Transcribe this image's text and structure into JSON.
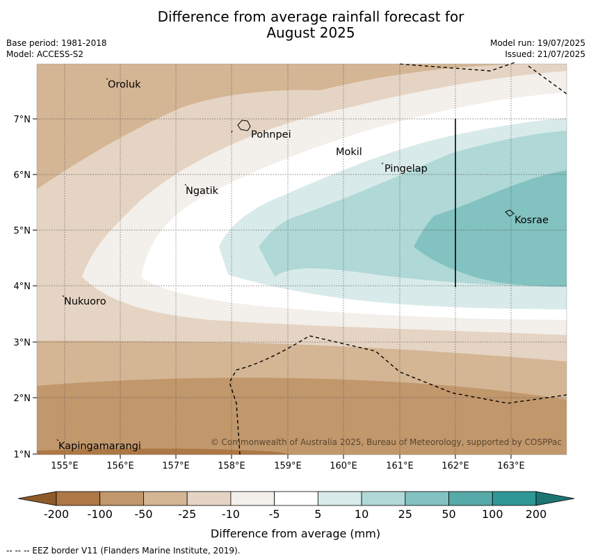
{
  "title": {
    "line1": "Difference from average rainfall forecast for",
    "line2": "August 2025"
  },
  "meta_left": {
    "base_period": "Base period: 1981-2018",
    "model": "Model: ACCESS-S2"
  },
  "meta_right": {
    "model_run": "Model run: 19/07/2025",
    "issued": "Issued: 21/07/2025"
  },
  "map": {
    "lat_labels": [
      "7°N",
      "6°N",
      "5°N",
      "4°N",
      "3°N",
      "2°N",
      "1°N"
    ],
    "lon_labels": [
      "155°E",
      "156°E",
      "157°E",
      "158°E",
      "159°E",
      "160°E",
      "161°E",
      "162°E",
      "163°E"
    ],
    "places": {
      "oroluk": "Oroluk",
      "pohnpei": "Pohnpei",
      "mokil": "Mokil",
      "pingelap": "Pingelap",
      "ngatik": "Ngatik",
      "kosrae": "Kosrae",
      "nukuoro": "Nukuoro",
      "kapingamarangi": "Kapingamarangi"
    },
    "copyright": "© Commonwealth of Australia 2025, Bureau of Meteorology, supported by COSPPac"
  },
  "colorbar": {
    "labels": [
      "-200",
      "-100",
      "-50",
      "-25",
      "-10",
      "-5",
      "5",
      "10",
      "25",
      "50",
      "100",
      "200"
    ],
    "colors": [
      "#8d5a2a",
      "#ad7845",
      "#c1976c",
      "#d4b594",
      "#e5d4c3",
      "#f3efea",
      "#ffffff",
      "#d8ebea",
      "#b0d8d7",
      "#82c2c0",
      "#56aaa7",
      "#2f9896",
      "#1e7473"
    ],
    "title": "Difference from average (mm)"
  },
  "footer": "--  --  -- EEZ border V11 (Flanders Marine Institute, 2019)."
}
